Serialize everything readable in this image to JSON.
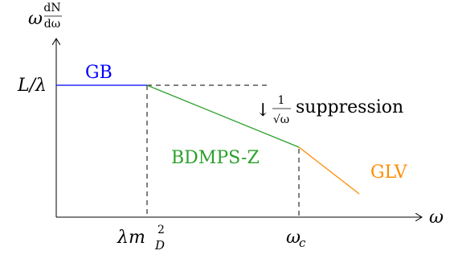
{
  "y_axis_label": {
    "omega": "ω",
    "frac_num": "dN",
    "frac_den": "dω"
  },
  "y_tick_label": "L/λ",
  "x_axis_label": "ω",
  "x_tick_1": {
    "base": "λm",
    "sup": "2",
    "sub": "D"
  },
  "x_tick_2": {
    "base": "ω",
    "sub": "c"
  },
  "regions": {
    "gb": "GB",
    "bdmps": "BDMPS-Z",
    "glv": "GLV"
  },
  "annotation": {
    "arrow": "↓",
    "frac_num": "1",
    "frac_den": "√ω",
    "text": "suppression"
  },
  "colors": {
    "gb": "#0000ff",
    "bdmps": "#2ca02c",
    "glv": "#ff8c00",
    "axis": "#000000"
  }
}
